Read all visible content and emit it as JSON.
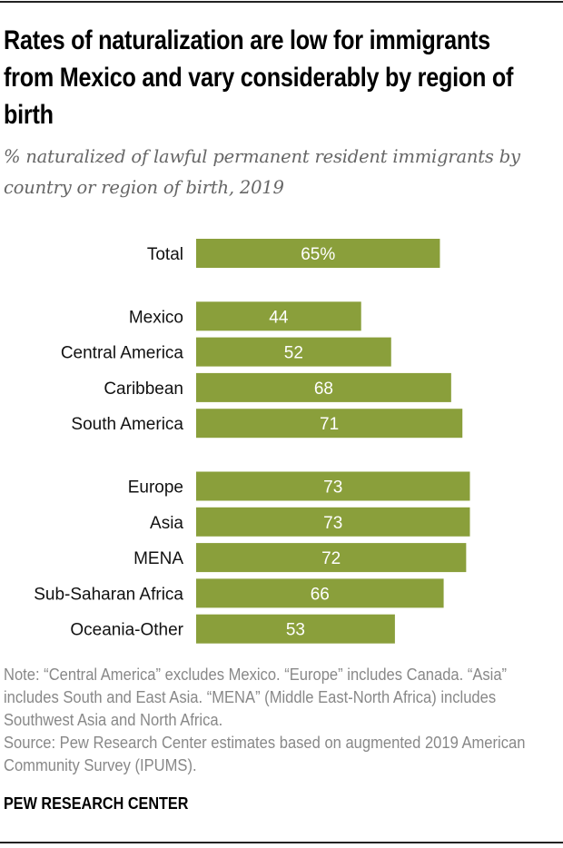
{
  "title": "Rates of naturalization are low for immigrants from Mexico and vary considerably by region of birth",
  "subtitle": "% naturalized of lawful permanent resident immigrants by country or region of birth, 2019",
  "chart_data": {
    "type": "bar",
    "orientation": "horizontal",
    "categories": [
      "Total",
      "Mexico",
      "Central America",
      "Caribbean",
      "South America",
      "Europe",
      "Asia",
      "MENA",
      "Sub-Saharan Africa",
      "Oceania-Other"
    ],
    "values": [
      65,
      44,
      52,
      68,
      71,
      73,
      73,
      72,
      66,
      53
    ],
    "data_labels": [
      "65%",
      "44",
      "52",
      "68",
      "71",
      "73",
      "73",
      "72",
      "66",
      "53"
    ],
    "groups": [
      [
        0
      ],
      [
        1,
        2,
        3,
        4
      ],
      [
        5,
        6,
        7,
        8,
        9
      ]
    ],
    "xlim": [
      0,
      100
    ],
    "bar_color": "#8a9f3b",
    "grid": false
  },
  "note": "Note: “Central America” excludes Mexico. “Europe” includes Canada. “Asia” includes South and East Asia. “MENA” (Middle East-North Africa) includes Southwest Asia and North Africa.",
  "source": "Source: Pew Research Center estimates based on augmented 2019 American Community Survey (IPUMS).",
  "brand": "PEW RESEARCH CENTER"
}
